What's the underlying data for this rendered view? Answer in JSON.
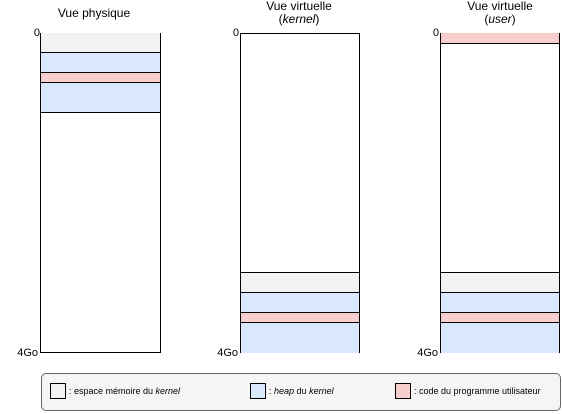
{
  "columns": [
    {
      "title_line1": "Vue physique",
      "title_line2": "",
      "top_label": "0",
      "bottom_label": "4Go"
    },
    {
      "title_line1": "Vue virtuelle",
      "title_line2_open": "(",
      "title_line2": "kernel",
      "title_line2_close": ")",
      "top_label": "0",
      "bottom_label": "4Go"
    },
    {
      "title_line1": "Vue virtuelle",
      "title_line2_open": "(",
      "title_line2": "user",
      "title_line2_close": ")",
      "top_label": "0",
      "bottom_label": "4Go"
    }
  ],
  "legend": {
    "kernel_prefix": ": espace mémoire du ",
    "kernel_em": "kernel",
    "heap_prefix": ": ",
    "heap_em": "heap",
    "heap_mid": " du ",
    "heap_em2": "kernel",
    "user_text": ": code du programme utilisateur"
  },
  "colors": {
    "kernel_space": "#f2f2f2",
    "kernel_heap": "#dae8fc",
    "user_code": "#f8cecc"
  }
}
